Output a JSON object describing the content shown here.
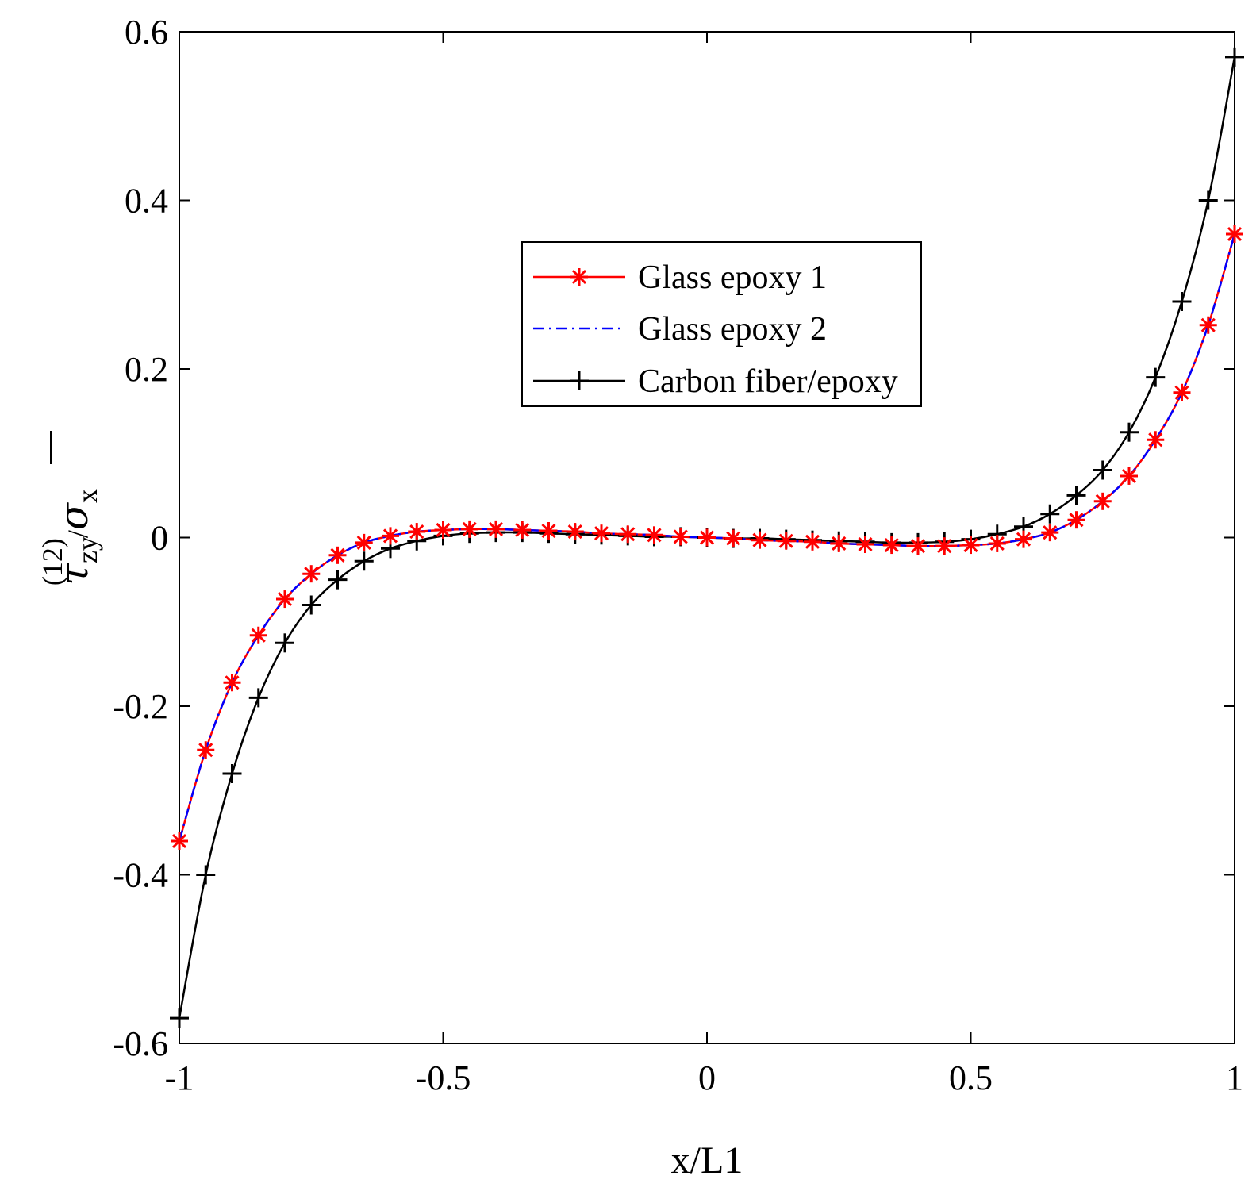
{
  "chart_data": {
    "type": "line",
    "title": "",
    "xlabel": "x/L1",
    "ylabel": {
      "symbol": "τ",
      "superscript": "(12)",
      "subscript": "zy",
      "divider": "/",
      "denominator_symbol": "σ",
      "denominator_subscript": "x"
    },
    "xlim": [
      -1,
      1
    ],
    "ylim": [
      -0.6,
      0.6
    ],
    "xticks": [
      -1,
      -0.5,
      0,
      0.5,
      1
    ],
    "xtick_labels": [
      "-1",
      "-0.5",
      "0",
      "0.5",
      "1"
    ],
    "yticks": [
      -0.6,
      -0.4,
      -0.2,
      0,
      0.2,
      0.4,
      0.6
    ],
    "ytick_labels": [
      "-0.6",
      "-0.4",
      "-0.2",
      "0",
      "0.2",
      "0.4",
      "0.6"
    ],
    "grid": false,
    "legend_position": "upper-center",
    "x": [
      -1,
      -0.95,
      -0.9,
      -0.85,
      -0.8,
      -0.75,
      -0.7,
      -0.65,
      -0.6,
      -0.55,
      -0.5,
      -0.45,
      -0.4,
      -0.35,
      -0.3,
      -0.25,
      -0.2,
      -0.15,
      -0.1,
      -0.05,
      0,
      0.05,
      0.1,
      0.15,
      0.2,
      0.25,
      0.3,
      0.35,
      0.4,
      0.45,
      0.5,
      0.55,
      0.6,
      0.65,
      0.7,
      0.75,
      0.8,
      0.85,
      0.9,
      0.95,
      1
    ],
    "series": [
      {
        "name": "Glass epoxy 1",
        "color": "#ff0000",
        "line": "solid",
        "marker": "asterisk",
        "values": [
          -0.36,
          -0.252,
          -0.172,
          -0.116,
          -0.073,
          -0.043,
          -0.021,
          -0.006,
          0.002,
          0.007,
          0.009,
          0.01,
          0.01,
          0.009,
          0.008,
          0.007,
          0.005,
          0.004,
          0.003,
          0.001,
          0.0,
          -0.001,
          -0.003,
          -0.004,
          -0.005,
          -0.007,
          -0.008,
          -0.009,
          -0.01,
          -0.01,
          -0.009,
          -0.007,
          -0.002,
          0.006,
          0.021,
          0.043,
          0.073,
          0.116,
          0.172,
          0.252,
          0.36
        ]
      },
      {
        "name": "Glass epoxy 2",
        "color": "#0000ff",
        "line": "dashdot",
        "marker": "none",
        "values": [
          -0.36,
          -0.252,
          -0.172,
          -0.116,
          -0.073,
          -0.043,
          -0.021,
          -0.006,
          0.002,
          0.007,
          0.009,
          0.01,
          0.01,
          0.009,
          0.008,
          0.007,
          0.005,
          0.004,
          0.003,
          0.001,
          0.0,
          -0.001,
          -0.003,
          -0.004,
          -0.005,
          -0.007,
          -0.008,
          -0.009,
          -0.01,
          -0.01,
          -0.009,
          -0.007,
          -0.002,
          0.006,
          0.021,
          0.043,
          0.073,
          0.116,
          0.172,
          0.252,
          0.36
        ]
      },
      {
        "name": "Carbon fiber/epoxy",
        "color": "#000000",
        "line": "solid",
        "marker": "plus",
        "values": [
          -0.57,
          -0.4,
          -0.28,
          -0.19,
          -0.125,
          -0.08,
          -0.05,
          -0.028,
          -0.013,
          -0.004,
          0.002,
          0.005,
          0.006,
          0.006,
          0.005,
          0.004,
          0.003,
          0.002,
          0.001,
          0.001,
          0.0,
          -0.001,
          -0.001,
          -0.002,
          -0.003,
          -0.004,
          -0.005,
          -0.006,
          -0.006,
          -0.005,
          -0.002,
          0.004,
          0.013,
          0.028,
          0.05,
          0.08,
          0.125,
          0.19,
          0.28,
          0.4,
          0.57
        ]
      }
    ]
  }
}
